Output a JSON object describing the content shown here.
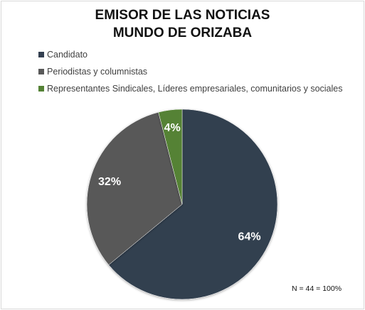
{
  "chart_data": {
    "type": "pie",
    "title_line1": "EMISOR DE LAS NOTICIAS",
    "title_line2": "MUNDO DE ORIZABA",
    "categories": [
      "Candidato",
      "Periodistas y columnistas",
      "Representantes Sindicales, Líderes empresariales, comunitarios y sociales"
    ],
    "values": [
      64,
      32,
      4
    ],
    "data_labels": [
      "64%",
      "32%",
      "4%"
    ],
    "colors": [
      "#333f50",
      "#595959",
      "#548235"
    ],
    "legend_position": "top-left",
    "note": "N = 44 = 100%"
  }
}
